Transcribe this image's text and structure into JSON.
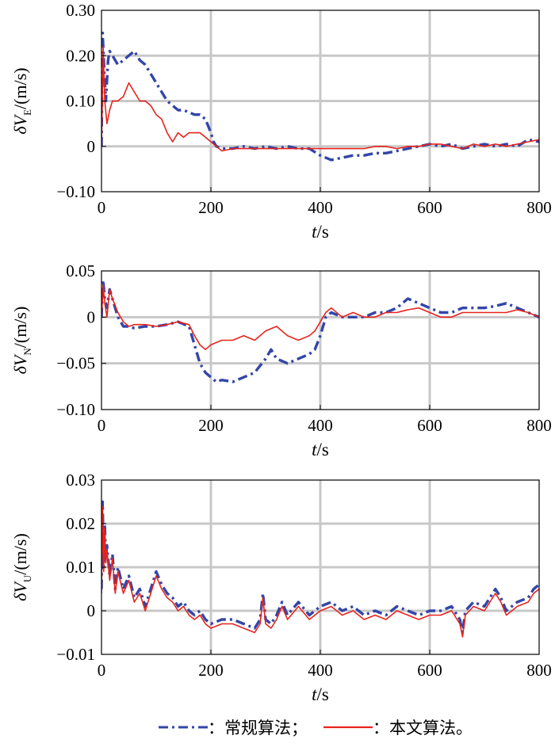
{
  "legend": {
    "conventional_label": "：常规算法；",
    "proposed_label": "：本文算法。"
  },
  "colors": {
    "conventional": "#3346a8",
    "proposed": "#e8231c",
    "grid": "#c8c8c8",
    "axis": "#000000"
  },
  "chart_data": [
    {
      "type": "line",
      "ylabel": {
        "prefix": "δV",
        "subscript": "E",
        "suffix": "/(m/s)"
      },
      "xlabel": {
        "var": "t",
        "unit": "/s"
      },
      "xlim": [
        0,
        800
      ],
      "ylim": [
        -0.1,
        0.3
      ],
      "xticks": [
        0,
        200,
        400,
        600,
        800
      ],
      "xtick_labels": [
        "0",
        "200",
        "400",
        "600",
        "800"
      ],
      "yticks": [
        -0.1,
        0,
        0.1,
        0.2,
        0.3
      ],
      "ytick_labels": [
        "−0.10",
        "0",
        "0.10",
        "0.20",
        "0.30"
      ],
      "grid": true,
      "series": [
        {
          "key": "conventional",
          "style": "dashdot",
          "x": [
            0,
            2,
            5,
            8,
            12,
            15,
            20,
            30,
            40,
            50,
            60,
            70,
            80,
            90,
            100,
            110,
            120,
            130,
            140,
            150,
            160,
            170,
            180,
            190,
            200,
            205,
            210,
            220,
            240,
            260,
            280,
            300,
            320,
            340,
            360,
            380,
            400,
            410,
            420,
            440,
            460,
            480,
            500,
            520,
            540,
            560,
            580,
            600,
            620,
            640,
            660,
            680,
            700,
            720,
            740,
            760,
            780,
            800
          ],
          "y": [
            0.0,
            0.25,
            0.17,
            0.1,
            0.19,
            0.21,
            0.2,
            0.18,
            0.19,
            0.2,
            0.21,
            0.19,
            0.18,
            0.16,
            0.14,
            0.12,
            0.1,
            0.09,
            0.08,
            0.08,
            0.075,
            0.07,
            0.07,
            0.06,
            0.03,
            0.01,
            0.0,
            -0.005,
            -0.005,
            0.0,
            -0.005,
            0.0,
            -0.005,
            0.0,
            -0.005,
            -0.005,
            -0.02,
            -0.025,
            -0.03,
            -0.025,
            -0.02,
            -0.02,
            -0.015,
            -0.015,
            -0.01,
            -0.005,
            0.0,
            0.005,
            0.0,
            0.005,
            -0.005,
            0.0,
            0.005,
            0.0,
            0.005,
            0.0,
            0.015,
            0.01
          ]
        },
        {
          "key": "proposed",
          "style": "solid",
          "x": [
            0,
            3,
            6,
            10,
            15,
            20,
            30,
            40,
            50,
            60,
            70,
            80,
            90,
            100,
            110,
            120,
            130,
            140,
            150,
            160,
            170,
            180,
            190,
            200,
            210,
            220,
            240,
            260,
            280,
            300,
            320,
            340,
            360,
            380,
            400,
            420,
            440,
            460,
            480,
            500,
            520,
            540,
            560,
            580,
            600,
            620,
            640,
            660,
            680,
            700,
            720,
            740,
            760,
            780,
            800
          ],
          "y": [
            0.0,
            0.22,
            0.1,
            0.05,
            0.08,
            0.1,
            0.1,
            0.11,
            0.14,
            0.12,
            0.1,
            0.1,
            0.09,
            0.07,
            0.06,
            0.03,
            0.01,
            0.03,
            0.02,
            0.03,
            0.03,
            0.03,
            0.02,
            0.01,
            0.0,
            -0.01,
            -0.005,
            -0.005,
            -0.005,
            -0.005,
            -0.005,
            -0.005,
            -0.005,
            -0.005,
            -0.005,
            -0.005,
            -0.005,
            -0.005,
            -0.005,
            0.0,
            0.0,
            -0.005,
            0.0,
            0.0,
            0.005,
            0.005,
            0.0,
            -0.005,
            0.005,
            0.0,
            0.005,
            0.0,
            0.005,
            0.01,
            0.015
          ]
        }
      ]
    },
    {
      "type": "line",
      "ylabel": {
        "prefix": "δV",
        "subscript": "N",
        "suffix": "/(m/s)"
      },
      "xlabel": {
        "var": "t",
        "unit": "/s"
      },
      "xlim": [
        0,
        800
      ],
      "ylim": [
        -0.1,
        0.05
      ],
      "xticks": [
        0,
        200,
        400,
        600,
        800
      ],
      "xtick_labels": [
        "0",
        "200",
        "400",
        "600",
        "800"
      ],
      "yticks": [
        -0.1,
        -0.05,
        0,
        0.05
      ],
      "ytick_labels": [
        "−0.10",
        "−0.05",
        "0",
        "0.05"
      ],
      "grid": true,
      "series": [
        {
          "key": "conventional",
          "style": "dashdot",
          "x": [
            0,
            3,
            6,
            10,
            15,
            20,
            30,
            40,
            50,
            60,
            80,
            100,
            120,
            140,
            160,
            170,
            180,
            190,
            200,
            210,
            220,
            240,
            260,
            280,
            300,
            310,
            320,
            340,
            360,
            380,
            390,
            400,
            410,
            420,
            440,
            460,
            480,
            500,
            520,
            540,
            560,
            580,
            600,
            620,
            640,
            660,
            680,
            700,
            720,
            740,
            760,
            780,
            800
          ],
          "y": [
            0.0,
            0.04,
            0.02,
            0.01,
            0.03,
            0.02,
            0.0,
            -0.01,
            -0.01,
            -0.012,
            -0.01,
            -0.01,
            -0.008,
            -0.005,
            -0.01,
            -0.03,
            -0.05,
            -0.06,
            -0.065,
            -0.07,
            -0.068,
            -0.07,
            -0.065,
            -0.06,
            -0.045,
            -0.035,
            -0.045,
            -0.05,
            -0.045,
            -0.04,
            -0.035,
            -0.02,
            0.0,
            0.005,
            0.0,
            0.0,
            0.0,
            0.005,
            0.005,
            0.01,
            0.02,
            0.015,
            0.01,
            0.005,
            0.005,
            0.01,
            0.01,
            0.01,
            0.012,
            0.015,
            0.01,
            0.005,
            0.0
          ]
        },
        {
          "key": "proposed",
          "style": "solid",
          "x": [
            0,
            3,
            6,
            10,
            15,
            20,
            30,
            40,
            50,
            60,
            80,
            100,
            120,
            140,
            160,
            170,
            180,
            190,
            200,
            220,
            240,
            260,
            280,
            300,
            320,
            340,
            360,
            380,
            390,
            400,
            410,
            420,
            440,
            460,
            480,
            500,
            520,
            540,
            560,
            580,
            600,
            620,
            640,
            660,
            680,
            700,
            720,
            740,
            760,
            780,
            800
          ],
          "y": [
            0.0,
            0.035,
            0.015,
            0.0,
            0.03,
            0.02,
            0.005,
            -0.005,
            -0.01,
            -0.008,
            -0.008,
            -0.01,
            -0.008,
            -0.005,
            -0.008,
            -0.02,
            -0.03,
            -0.035,
            -0.03,
            -0.025,
            -0.025,
            -0.02,
            -0.025,
            -0.015,
            -0.01,
            -0.02,
            -0.025,
            -0.02,
            -0.015,
            -0.005,
            0.005,
            0.01,
            0.0,
            0.005,
            0.0,
            0.0,
            0.005,
            0.005,
            0.008,
            0.01,
            0.005,
            0.0,
            0.0,
            0.005,
            0.005,
            0.005,
            0.005,
            0.005,
            0.008,
            0.005,
            0.0
          ]
        }
      ]
    },
    {
      "type": "line",
      "ylabel": {
        "prefix": "δV",
        "subscript": "U",
        "suffix": "/(m/s)"
      },
      "xlabel": {
        "var": "t",
        "unit": "/s"
      },
      "xlim": [
        0,
        800
      ],
      "ylim": [
        -0.01,
        0.03
      ],
      "xticks": [
        0,
        200,
        400,
        600,
        800
      ],
      "xtick_labels": [
        "0",
        "200",
        "400",
        "600",
        "800"
      ],
      "yticks": [
        -0.01,
        0,
        0.01,
        0.02,
        0.03
      ],
      "ytick_labels": [
        "−0.01",
        "0",
        "0.01",
        "0.02",
        "0.03"
      ],
      "grid": true,
      "series": [
        {
          "key": "conventional",
          "style": "dashdot",
          "x": [
            0,
            2,
            4,
            6,
            8,
            10,
            15,
            20,
            25,
            30,
            40,
            50,
            60,
            70,
            80,
            90,
            100,
            110,
            120,
            130,
            140,
            150,
            160,
            170,
            180,
            190,
            200,
            220,
            240,
            260,
            280,
            290,
            295,
            300,
            310,
            320,
            330,
            340,
            360,
            380,
            400,
            420,
            440,
            460,
            480,
            500,
            520,
            540,
            560,
            580,
            600,
            620,
            640,
            655,
            660,
            665,
            680,
            700,
            720,
            730,
            740,
            760,
            780,
            790,
            800
          ],
          "y": [
            0.005,
            0.025,
            0.01,
            0.02,
            0.012,
            0.015,
            0.008,
            0.013,
            0.005,
            0.01,
            0.005,
            0.008,
            0.003,
            0.005,
            0.001,
            0.005,
            0.009,
            0.006,
            0.004,
            0.003,
            0.001,
            0.002,
            0.0,
            -0.001,
            0.0,
            -0.002,
            -0.003,
            -0.002,
            -0.002,
            -0.003,
            -0.004,
            -0.002,
            0.004,
            -0.002,
            -0.003,
            -0.001,
            0.002,
            -0.001,
            0.002,
            -0.001,
            0.001,
            0.002,
            0.0,
            0.001,
            -0.001,
            0.0,
            -0.001,
            0.001,
            0.0,
            -0.001,
            0.0,
            0.0,
            0.001,
            -0.002,
            -0.005,
            0.0,
            0.002,
            0.001,
            0.005,
            0.003,
            0.0,
            0.002,
            0.003,
            0.005,
            0.006
          ]
        },
        {
          "key": "proposed",
          "style": "solid",
          "x": [
            0,
            2,
            4,
            6,
            8,
            10,
            15,
            20,
            25,
            30,
            40,
            50,
            60,
            70,
            80,
            90,
            100,
            110,
            120,
            130,
            140,
            150,
            160,
            170,
            180,
            190,
            200,
            220,
            240,
            260,
            280,
            290,
            295,
            300,
            310,
            320,
            330,
            340,
            360,
            380,
            400,
            420,
            440,
            460,
            480,
            500,
            520,
            540,
            560,
            580,
            600,
            620,
            640,
            655,
            660,
            665,
            680,
            700,
            720,
            730,
            740,
            760,
            780,
            790,
            800
          ],
          "y": [
            0.004,
            0.024,
            0.009,
            0.019,
            0.011,
            0.014,
            0.007,
            0.012,
            0.004,
            0.009,
            0.004,
            0.007,
            0.002,
            0.004,
            0.0,
            0.004,
            0.008,
            0.005,
            0.003,
            0.002,
            0.0,
            0.001,
            -0.001,
            -0.002,
            -0.001,
            -0.003,
            -0.004,
            -0.003,
            -0.003,
            -0.004,
            -0.005,
            -0.003,
            0.003,
            -0.003,
            -0.004,
            -0.002,
            0.001,
            -0.002,
            0.001,
            -0.002,
            0.0,
            0.001,
            -0.001,
            0.0,
            -0.002,
            -0.001,
            -0.002,
            0.0,
            -0.001,
            -0.002,
            -0.001,
            -0.001,
            0.0,
            -0.003,
            -0.006,
            -0.001,
            0.001,
            0.0,
            0.004,
            0.002,
            -0.001,
            0.001,
            0.002,
            0.004,
            0.005
          ]
        }
      ]
    }
  ]
}
